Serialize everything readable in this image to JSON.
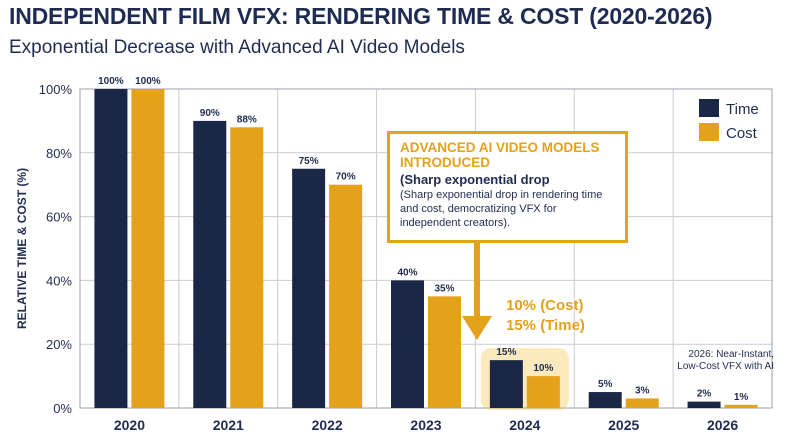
{
  "header": {
    "title": "INDEPENDENT FILM VFX: RENDERING TIME & COST (2020-2026)",
    "subtitle": "Exponential Decrease with Advanced AI Video Models"
  },
  "colors": {
    "time": "#1a2747",
    "cost": "#e4a11b",
    "highlight": "#f5c040"
  },
  "annotations": {
    "callout_head": "ADVANCED AI VIDEO MODELS INTRODUCED",
    "callout_sub": "(Sharp exponential drop",
    "callout_body": "(Sharp exponential drop in rendering time and cost, democratizing VFX for independent creators).",
    "note_2024_line1": "10% (Cost)",
    "note_2024_line2": "15% (Time)",
    "note_2026": "2026: Near-Instant, Low-Cost VFX with AI"
  },
  "chart_data": {
    "type": "bar",
    "categories": [
      "2020",
      "2021",
      "2022",
      "2023",
      "2024",
      "2025",
      "2026"
    ],
    "series": [
      {
        "name": "Time",
        "values": [
          100,
          90,
          75,
          40,
          15,
          5,
          2
        ]
      },
      {
        "name": "Cost",
        "values": [
          100,
          88,
          70,
          35,
          10,
          3,
          1
        ]
      }
    ],
    "ylabel": "RELATIVE TIME & COST (%)",
    "xlabel": "",
    "ylim": [
      0,
      100
    ],
    "yticks": [
      "0%",
      "20%",
      "40%",
      "60%",
      "80%",
      "100%"
    ],
    "data_labels": {
      "Time": [
        "100%",
        "90%",
        "75%",
        "40%",
        "15%",
        "5%",
        "2%"
      ],
      "Cost": [
        "100%",
        "88%",
        "70%",
        "35%",
        "10%",
        "3%",
        "1%"
      ]
    },
    "legend_position": "top-right",
    "grid": true,
    "highlighted_category": "2024"
  }
}
